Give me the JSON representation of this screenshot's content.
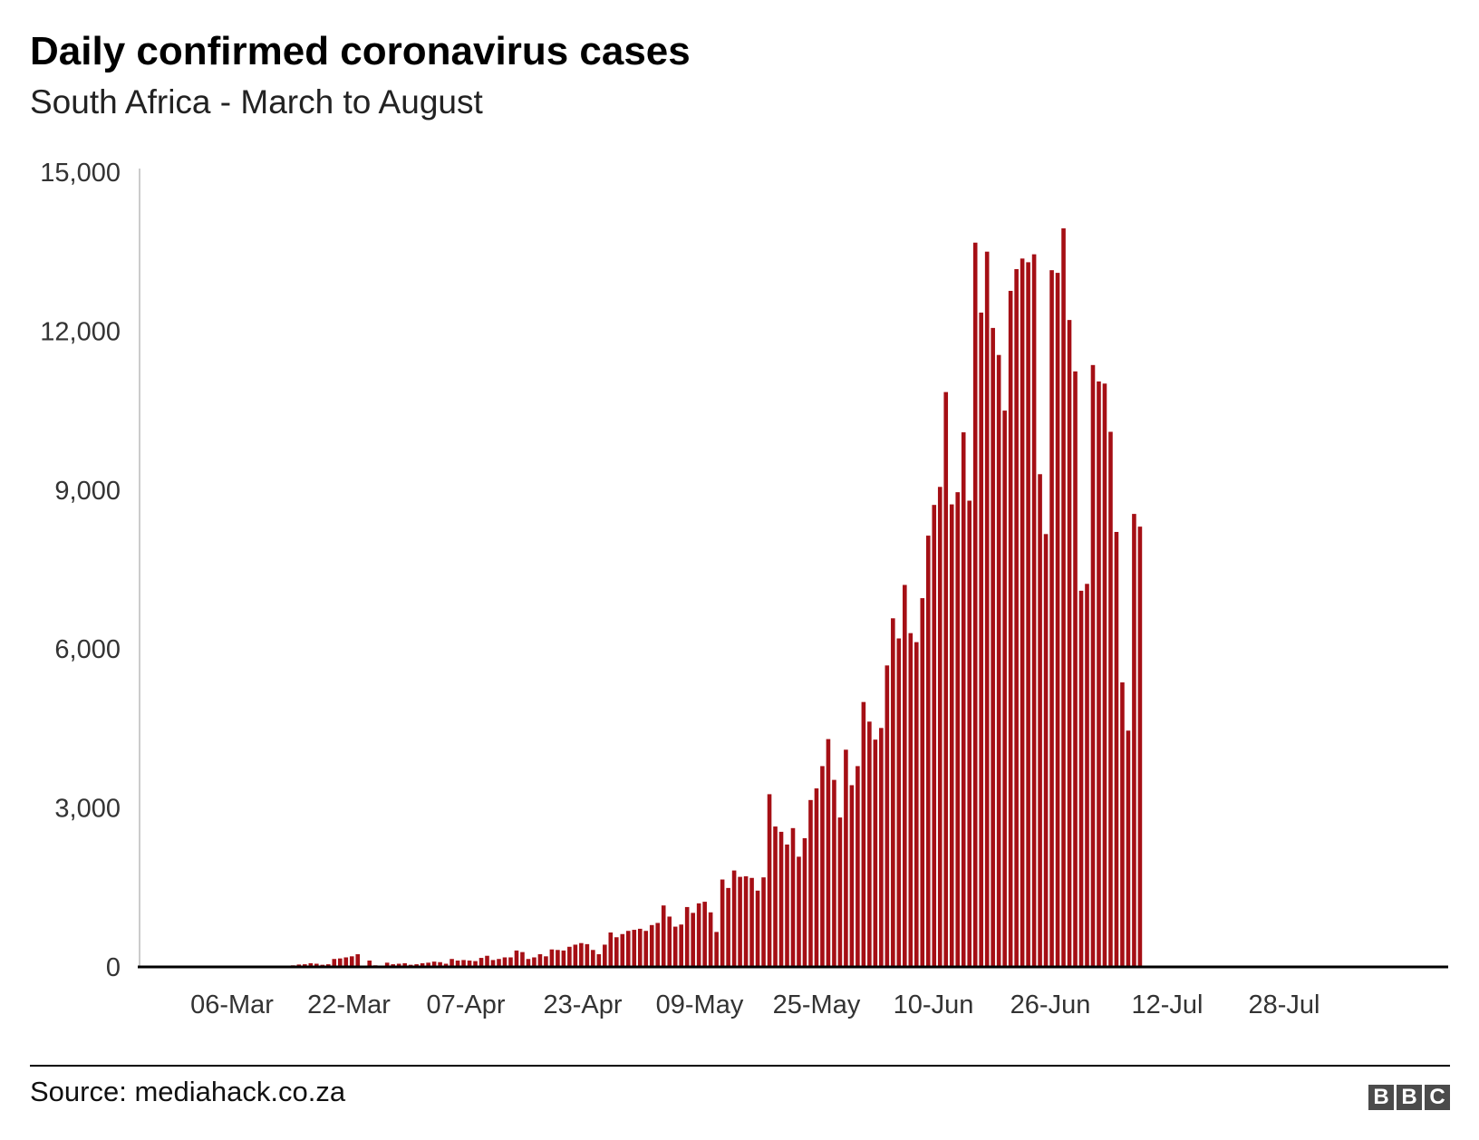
{
  "header": {
    "title": "Daily confirmed coronavirus cases",
    "subtitle": "South Africa - March to August"
  },
  "footer": {
    "source": "Source: mediahack.co.za",
    "logo_letters": [
      "B",
      "B",
      "C"
    ]
  },
  "colors": {
    "bar": "#a50f15",
    "axis": "#000000",
    "gridline": "#cccccc",
    "logo": "#4b4b4b"
  },
  "chart_data": {
    "type": "bar",
    "title": "Daily confirmed coronavirus cases",
    "subtitle": "South Africa - March to August",
    "xlabel": "",
    "ylabel": "",
    "start_date": "2020-03-06",
    "x_tick_labels": [
      "06-Mar",
      "22-Mar",
      "07-Apr",
      "23-Apr",
      "09-May",
      "25-May",
      "10-Jun",
      "26-Jun",
      "12-Jul",
      "28-Jul"
    ],
    "y_ticks": [
      0,
      3000,
      6000,
      9000,
      12000,
      15000
    ],
    "y_tick_labels": [
      "0",
      "3,000",
      "6,000",
      "9,000",
      "12,000",
      "15,000"
    ],
    "ylim": [
      0,
      15000
    ],
    "grid": false,
    "legend": "none",
    "series": [
      {
        "values": [
          1,
          1,
          1,
          2,
          3,
          4,
          4,
          7,
          13,
          17,
          11,
          24,
          0,
          0,
          0,
          0,
          0,
          0,
          0,
          0,
          0,
          0,
          0,
          0,
          0,
          30,
          45,
          50,
          70,
          60,
          40,
          50,
          150,
          160,
          180,
          200,
          240,
          15,
          120,
          30,
          20,
          80,
          50,
          60,
          70,
          40,
          50,
          70,
          80,
          100,
          90,
          60,
          150,
          120,
          130,
          120,
          110,
          170,
          210,
          130,
          150,
          180,
          180,
          310,
          280,
          150,
          180,
          240,
          200,
          330,
          320,
          310,
          380,
          420,
          450,
          430,
          320,
          240,
          420,
          650,
          560,
          620,
          680,
          700,
          720,
          680,
          790,
          830,
          1160,
          950,
          760,
          800,
          1130,
          1020,
          1200,
          1230,
          1030,
          660,
          1650,
          1490,
          1820,
          1700,
          1710,
          1680,
          1440,
          1690,
          3260,
          2650,
          2550,
          2310,
          2620,
          2080,
          2430,
          3150,
          3370,
          3790,
          4300,
          3530,
          2820,
          4100,
          3430,
          3790,
          5000,
          4630,
          4290,
          4510,
          5690,
          6580,
          6200,
          7210,
          6300,
          6130,
          6960,
          8140,
          8720,
          9060,
          10850,
          8730,
          8960,
          10090,
          8800,
          13670,
          12350,
          13500,
          12060,
          11550,
          10500,
          12760,
          13170,
          13370,
          13300,
          13450,
          9300,
          8170,
          13150,
          13100,
          13940,
          12210,
          11240,
          7100,
          7230,
          11360,
          11050,
          11010,
          10100,
          8210,
          5370,
          4460,
          8550,
          8310
        ]
      }
    ]
  }
}
